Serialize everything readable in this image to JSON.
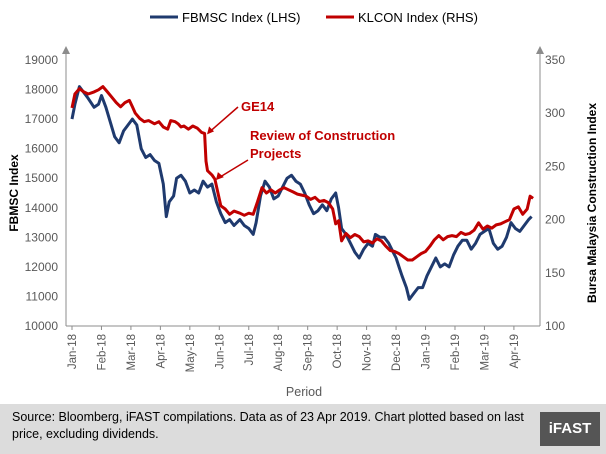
{
  "chart_data": {
    "type": "line",
    "xlabel": "Period",
    "y_left_label": "FBMSC Index",
    "y_right_label": "Bursa Malaysia Construction Index",
    "y_left_lim": [
      10000,
      19000
    ],
    "y_right_lim": [
      100,
      350
    ],
    "y_left_ticks": [
      10000,
      11000,
      12000,
      13000,
      14000,
      15000,
      16000,
      17000,
      18000,
      19000
    ],
    "y_right_ticks": [
      100,
      150,
      200,
      250,
      300,
      350
    ],
    "x_tick_labels": [
      "Jan-18",
      "Feb-18",
      "Mar-18",
      "Apr-18",
      "May-18",
      "Jun-18",
      "Jul-18",
      "Aug-18",
      "Sep-18",
      "Oct-18",
      "Nov-18",
      "Dec-18",
      "Jan-19",
      "Feb-19",
      "Mar-19",
      "Apr-19"
    ],
    "x_range_months": [
      0,
      15.75
    ],
    "grid": false,
    "legend_position": "top",
    "series": [
      {
        "name": "FBMSC Index (LHS)",
        "axis": "left",
        "color": "#1f3a6e",
        "points": [
          [
            0,
            17000
          ],
          [
            0.1,
            17500
          ],
          [
            0.25,
            18100
          ],
          [
            0.4,
            17900
          ],
          [
            0.55,
            17700
          ],
          [
            0.75,
            17400
          ],
          [
            0.9,
            17500
          ],
          [
            1.0,
            17800
          ],
          [
            1.15,
            17400
          ],
          [
            1.3,
            16900
          ],
          [
            1.45,
            16400
          ],
          [
            1.6,
            16200
          ],
          [
            1.75,
            16600
          ],
          [
            1.9,
            16800
          ],
          [
            2.05,
            17000
          ],
          [
            2.2,
            16800
          ],
          [
            2.35,
            16000
          ],
          [
            2.5,
            15700
          ],
          [
            2.65,
            15800
          ],
          [
            2.8,
            15600
          ],
          [
            2.95,
            15500
          ],
          [
            3.1,
            14800
          ],
          [
            3.2,
            13700
          ],
          [
            3.3,
            14200
          ],
          [
            3.45,
            14400
          ],
          [
            3.55,
            15000
          ],
          [
            3.7,
            15100
          ],
          [
            3.85,
            14900
          ],
          [
            4.0,
            14500
          ],
          [
            4.15,
            14600
          ],
          [
            4.3,
            14500
          ],
          [
            4.45,
            14900
          ],
          [
            4.6,
            14700
          ],
          [
            4.75,
            14800
          ],
          [
            4.9,
            14200
          ],
          [
            5.05,
            13800
          ],
          [
            5.2,
            13500
          ],
          [
            5.35,
            13600
          ],
          [
            5.5,
            13400
          ],
          [
            5.7,
            13600
          ],
          [
            5.85,
            13400
          ],
          [
            6.0,
            13300
          ],
          [
            6.15,
            13100
          ],
          [
            6.25,
            13500
          ],
          [
            6.4,
            14400
          ],
          [
            6.55,
            14900
          ],
          [
            6.7,
            14700
          ],
          [
            6.85,
            14300
          ],
          [
            7.0,
            14400
          ],
          [
            7.15,
            14700
          ],
          [
            7.3,
            15000
          ],
          [
            7.45,
            15100
          ],
          [
            7.6,
            14900
          ],
          [
            7.75,
            14800
          ],
          [
            7.9,
            14500
          ],
          [
            8.05,
            14100
          ],
          [
            8.2,
            13800
          ],
          [
            8.35,
            13900
          ],
          [
            8.5,
            14100
          ],
          [
            8.65,
            13900
          ],
          [
            8.8,
            14300
          ],
          [
            8.95,
            14500
          ],
          [
            9.05,
            14000
          ],
          [
            9.15,
            13300
          ],
          [
            9.3,
            13100
          ],
          [
            9.45,
            12800
          ],
          [
            9.6,
            12500
          ],
          [
            9.75,
            12300
          ],
          [
            9.9,
            12600
          ],
          [
            10.05,
            12800
          ],
          [
            10.2,
            12700
          ],
          [
            10.3,
            13100
          ],
          [
            10.45,
            13000
          ],
          [
            10.6,
            13000
          ],
          [
            10.75,
            12800
          ],
          [
            10.9,
            12500
          ],
          [
            11.0,
            12300
          ],
          [
            11.1,
            12000
          ],
          [
            11.2,
            11700
          ],
          [
            11.35,
            11300
          ],
          [
            11.45,
            10900
          ],
          [
            11.6,
            11100
          ],
          [
            11.75,
            11300
          ],
          [
            11.9,
            11300
          ],
          [
            12.05,
            11700
          ],
          [
            12.2,
            12000
          ],
          [
            12.35,
            12300
          ],
          [
            12.5,
            12000
          ],
          [
            12.65,
            12100
          ],
          [
            12.8,
            12000
          ],
          [
            12.95,
            12400
          ],
          [
            13.1,
            12700
          ],
          [
            13.25,
            12900
          ],
          [
            13.4,
            12900
          ],
          [
            13.55,
            12600
          ],
          [
            13.7,
            12800
          ],
          [
            13.85,
            13100
          ],
          [
            14.0,
            13200
          ],
          [
            14.15,
            13300
          ],
          [
            14.3,
            12800
          ],
          [
            14.45,
            12600
          ],
          [
            14.6,
            12700
          ],
          [
            14.75,
            13000
          ],
          [
            14.9,
            13500
          ],
          [
            15.05,
            13300
          ],
          [
            15.2,
            13200
          ],
          [
            15.35,
            13400
          ],
          [
            15.5,
            13600
          ],
          [
            15.6,
            13700
          ]
        ]
      },
      {
        "name": "KLCON Index (RHS)",
        "axis": "right",
        "color": "#c00000",
        "points": [
          [
            0,
            305
          ],
          [
            0.1,
            318
          ],
          [
            0.25,
            323
          ],
          [
            0.4,
            320
          ],
          [
            0.55,
            318
          ],
          [
            0.75,
            320
          ],
          [
            0.9,
            322
          ],
          [
            1.05,
            325
          ],
          [
            1.2,
            320
          ],
          [
            1.35,
            315
          ],
          [
            1.5,
            310
          ],
          [
            1.65,
            306
          ],
          [
            1.8,
            310
          ],
          [
            1.95,
            312
          ],
          [
            2.05,
            306
          ],
          [
            2.15,
            300
          ],
          [
            2.3,
            295
          ],
          [
            2.45,
            292
          ],
          [
            2.6,
            293
          ],
          [
            2.8,
            290
          ],
          [
            2.95,
            292
          ],
          [
            3.1,
            287
          ],
          [
            3.25,
            285
          ],
          [
            3.35,
            293
          ],
          [
            3.5,
            292
          ],
          [
            3.6,
            290
          ],
          [
            3.7,
            287
          ],
          [
            3.8,
            288
          ],
          [
            3.95,
            285
          ],
          [
            4.1,
            288
          ],
          [
            4.25,
            286
          ],
          [
            4.4,
            282
          ],
          [
            4.5,
            281
          ],
          [
            4.55,
            255
          ],
          [
            4.6,
            246
          ],
          [
            4.75,
            242
          ],
          [
            4.85,
            238
          ],
          [
            5.05,
            213
          ],
          [
            5.2,
            210
          ],
          [
            5.35,
            205
          ],
          [
            5.5,
            208
          ],
          [
            5.7,
            206
          ],
          [
            5.85,
            204
          ],
          [
            6.0,
            206
          ],
          [
            6.15,
            205
          ],
          [
            6.3,
            217
          ],
          [
            6.45,
            230
          ],
          [
            6.6,
            225
          ],
          [
            6.75,
            228
          ],
          [
            6.9,
            225
          ],
          [
            7.05,
            228
          ],
          [
            7.2,
            230
          ],
          [
            7.35,
            228
          ],
          [
            7.5,
            226
          ],
          [
            7.65,
            224
          ],
          [
            7.8,
            223
          ],
          [
            7.95,
            222
          ],
          [
            8.1,
            219
          ],
          [
            8.25,
            221
          ],
          [
            8.4,
            217
          ],
          [
            8.55,
            218
          ],
          [
            8.7,
            216
          ],
          [
            8.85,
            210
          ],
          [
            8.95,
            196
          ],
          [
            9.05,
            199
          ],
          [
            9.15,
            180
          ],
          [
            9.3,
            187
          ],
          [
            9.45,
            183
          ],
          [
            9.6,
            186
          ],
          [
            9.75,
            184
          ],
          [
            9.9,
            179
          ],
          [
            10.05,
            180
          ],
          [
            10.2,
            178
          ],
          [
            10.35,
            182
          ],
          [
            10.5,
            180
          ],
          [
            10.65,
            175
          ],
          [
            10.8,
            171
          ],
          [
            10.95,
            170
          ],
          [
            11.1,
            168
          ],
          [
            11.25,
            165
          ],
          [
            11.4,
            162
          ],
          [
            11.55,
            162
          ],
          [
            11.7,
            165
          ],
          [
            11.85,
            168
          ],
          [
            12.0,
            170
          ],
          [
            12.15,
            175
          ],
          [
            12.3,
            181
          ],
          [
            12.45,
            185
          ],
          [
            12.6,
            181
          ],
          [
            12.75,
            184
          ],
          [
            12.9,
            185
          ],
          [
            13.05,
            184
          ],
          [
            13.2,
            188
          ],
          [
            13.35,
            186
          ],
          [
            13.5,
            187
          ],
          [
            13.65,
            190
          ],
          [
            13.8,
            197
          ],
          [
            13.95,
            191
          ],
          [
            14.1,
            194
          ],
          [
            14.25,
            192
          ],
          [
            14.4,
            195
          ],
          [
            14.55,
            196
          ],
          [
            14.7,
            198
          ],
          [
            14.85,
            200
          ],
          [
            15.0,
            210
          ],
          [
            15.15,
            212
          ],
          [
            15.3,
            205
          ],
          [
            15.45,
            210
          ],
          [
            15.55,
            222
          ],
          [
            15.65,
            220
          ]
        ]
      }
    ],
    "annotations": [
      {
        "text": "GE14",
        "color": "#c00000",
        "x": 4.55,
        "axis": "right",
        "y": 281
      },
      {
        "text": "Review of Construction Projects",
        "color": "#c00000",
        "x": 4.85,
        "axis": "right",
        "y": 238
      }
    ]
  },
  "footer": {
    "source_text": "Source: Bloomberg, iFAST compilations. Data as of 23 Apr 2019.  Chart plotted based on last price, excluding dividends.",
    "logo_text": "iFAST"
  }
}
